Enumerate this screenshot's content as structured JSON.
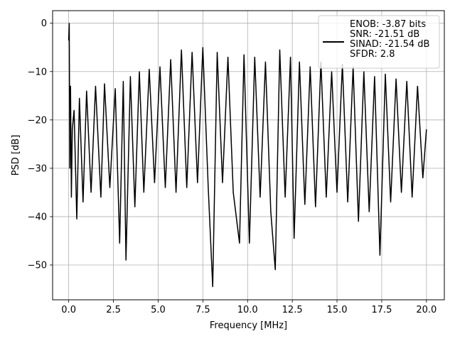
{
  "chart_data": {
    "type": "line",
    "title": "",
    "xlabel": "Frequency [MHz]",
    "ylabel": "PSD [dB]",
    "xlim": [
      -0.9,
      21.0
    ],
    "ylim": [
      -57.2,
      2.6
    ],
    "xticks": [
      0.0,
      2.5,
      5.0,
      7.5,
      10.0,
      12.5,
      15.0,
      17.5,
      20.0
    ],
    "xtick_labels": [
      "0.0",
      "2.5",
      "5.0",
      "7.5",
      "10.0",
      "12.5",
      "15.0",
      "17.5",
      "20.0"
    ],
    "yticks": [
      0,
      -10,
      -20,
      -30,
      -40,
      -50
    ],
    "ytick_labels": [
      "0",
      "−10",
      "−20",
      "−30",
      "−40",
      "−50"
    ],
    "grid": true,
    "legend_position": "top-right",
    "line_color": "#000000",
    "series": [
      {
        "name": "ENOB: -3.87 bits\nSNR: -21.51 dB\nSINAD: -21.54 dB\nSFDR: 2.8",
        "x": [
          0.0,
          0.03,
          0.06,
          0.1,
          0.15,
          0.2,
          0.3,
          0.45,
          0.6,
          0.8,
          1.0,
          1.25,
          1.5,
          1.8,
          2.0,
          2.3,
          2.6,
          2.85,
          3.05,
          3.2,
          3.45,
          3.7,
          3.95,
          4.2,
          4.5,
          4.8,
          5.1,
          5.4,
          5.7,
          6.0,
          6.3,
          6.6,
          6.9,
          7.2,
          7.5,
          7.8,
          8.05,
          8.3,
          8.6,
          8.9,
          9.2,
          9.55,
          9.8,
          10.1,
          10.4,
          10.7,
          11.0,
          11.3,
          11.55,
          11.8,
          12.1,
          12.4,
          12.6,
          12.9,
          13.2,
          13.5,
          13.8,
          14.1,
          14.4,
          14.7,
          15.0,
          15.3,
          15.6,
          15.9,
          16.2,
          16.5,
          16.8,
          17.1,
          17.4,
          17.7,
          18.0,
          18.3,
          18.6,
          18.9,
          19.2,
          19.5,
          19.8,
          20.0
        ],
        "y": [
          -3.5,
          0.0,
          -30.0,
          -13.0,
          -36.0,
          -22.0,
          -18.0,
          -40.5,
          -15.5,
          -37.0,
          -14.0,
          -35.0,
          -13.0,
          -36.0,
          -12.5,
          -34.0,
          -13.5,
          -45.5,
          -12.0,
          -49.0,
          -11.0,
          -38.0,
          -10.0,
          -35.0,
          -9.5,
          -33.0,
          -9.0,
          -34.0,
          -7.5,
          -35.0,
          -5.5,
          -34.0,
          -6.0,
          -33.0,
          -5.0,
          -34.0,
          -54.5,
          -6.0,
          -33.0,
          -7.0,
          -35.0,
          -45.5,
          -6.5,
          -45.5,
          -7.0,
          -36.0,
          -8.0,
          -39.0,
          -51.0,
          -5.5,
          -36.0,
          -7.0,
          -44.5,
          -8.0,
          -37.5,
          -9.0,
          -38.0,
          -8.0,
          -36.0,
          -10.0,
          -35.0,
          -8.5,
          -37.0,
          -9.0,
          -41.0,
          -10.0,
          -39.0,
          -11.0,
          -48.0,
          -10.5,
          -37.0,
          -11.5,
          -35.0,
          -12.0,
          -36.0,
          -13.0,
          -32.0,
          -22.0
        ]
      }
    ]
  }
}
